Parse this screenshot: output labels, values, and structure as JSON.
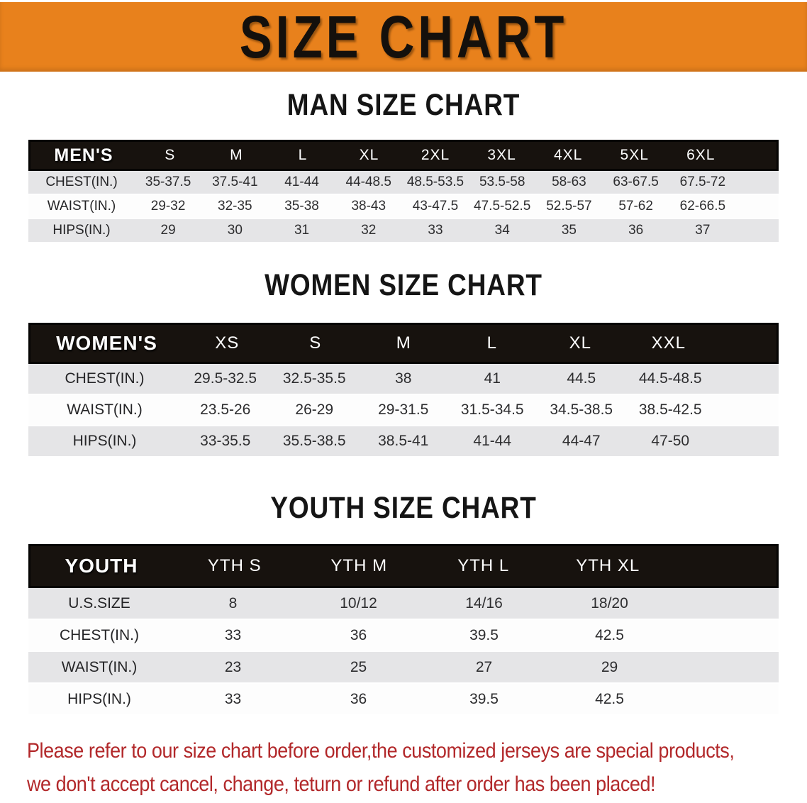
{
  "banner": {
    "title": "SIZE CHART"
  },
  "colors": {
    "banner_bg": "#E8811C",
    "banner_text": "#14100C",
    "table_header_bg": "#17120E",
    "row_stripe": "#E5E5E7",
    "disclaimer_red": "#B2282A"
  },
  "chart_data": [
    {
      "type": "table",
      "title": "MAN SIZE CHART",
      "corner_label": "MEN'S",
      "columns": [
        "S",
        "M",
        "L",
        "XL",
        "2XL",
        "3XL",
        "4XL",
        "5XL",
        "6XL"
      ],
      "rows": [
        {
          "label": "CHEST(IN.)",
          "values": [
            "35-37.5",
            "37.5-41",
            "41-44",
            "44-48.5",
            "48.5-53.5",
            "53.5-58",
            "58-63",
            "63-67.5",
            "67.5-72"
          ]
        },
        {
          "label": "WAIST(IN.)",
          "values": [
            "29-32",
            "32-35",
            "35-38",
            "38-43",
            "43-47.5",
            "47.5-52.5",
            "52.5-57",
            "57-62",
            "62-66.5"
          ]
        },
        {
          "label": "HIPS(IN.)",
          "values": [
            "29",
            "30",
            "31",
            "32",
            "33",
            "34",
            "35",
            "36",
            "37"
          ]
        }
      ]
    },
    {
      "type": "table",
      "title": "WOMEN SIZE CHART",
      "corner_label": "WOMEN'S",
      "columns": [
        "XS",
        "S",
        "M",
        "L",
        "XL",
        "XXL"
      ],
      "rows": [
        {
          "label": "CHEST(IN.)",
          "values": [
            "29.5-32.5",
            "32.5-35.5",
            "38",
            "41",
            "44.5",
            "44.5-48.5"
          ]
        },
        {
          "label": "WAIST(IN.)",
          "values": [
            "23.5-26",
            "26-29",
            "29-31.5",
            "31.5-34.5",
            "34.5-38.5",
            "38.5-42.5"
          ]
        },
        {
          "label": "HIPS(IN.)",
          "values": [
            "33-35.5",
            "35.5-38.5",
            "38.5-41",
            "41-44",
            "44-47",
            "47-50"
          ]
        }
      ]
    },
    {
      "type": "table",
      "title": "YOUTH SIZE CHART",
      "corner_label": "YOUTH",
      "columns": [
        "YTH S",
        "YTH M",
        "YTH L",
        "YTH XL"
      ],
      "rows": [
        {
          "label": "U.S.SIZE",
          "values": [
            "8",
            "10/12",
            "14/16",
            "18/20"
          ]
        },
        {
          "label": "CHEST(IN.)",
          "values": [
            "33",
            "36",
            "39.5",
            "42.5"
          ]
        },
        {
          "label": "WAIST(IN.)",
          "values": [
            "23",
            "25",
            "27",
            "29"
          ]
        },
        {
          "label": "HIPS(IN.)",
          "values": [
            "33",
            "36",
            "39.5",
            "42.5"
          ]
        }
      ]
    }
  ],
  "disclaimer": {
    "line1": "Please refer to our size chart before order,the customized jerseys are special products,",
    "line2": "we don't accept cancel, change, teturn or refund after order has been placed!"
  }
}
